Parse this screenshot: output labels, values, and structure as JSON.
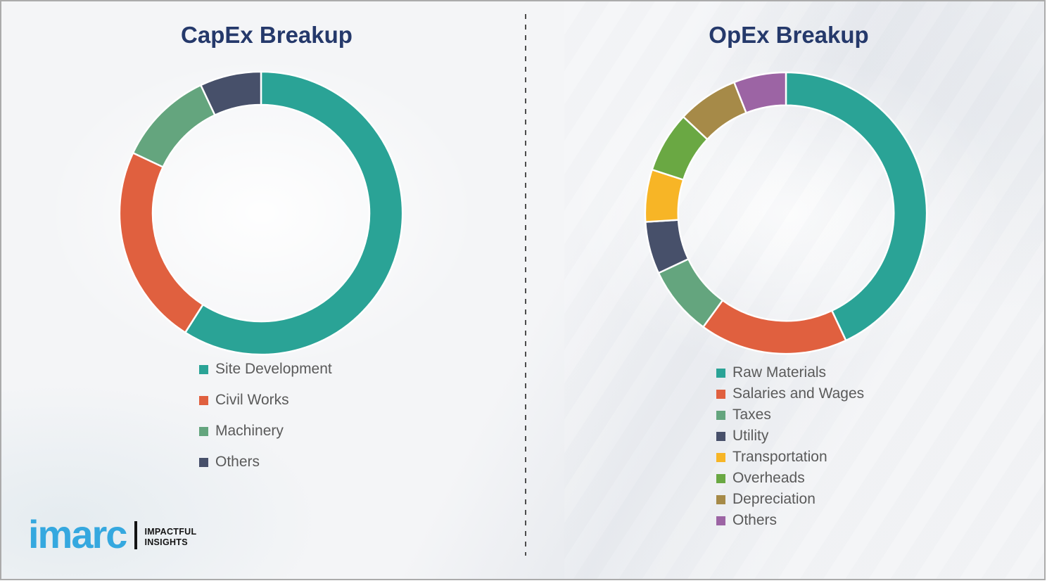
{
  "chart_data": [
    {
      "type": "pie",
      "variant": "donut",
      "title": "CapEx Breakup",
      "labels": [
        "Site Development",
        "Civil Works",
        "Machinery",
        "Others"
      ],
      "values": [
        59,
        23,
        11,
        7
      ],
      "values_are_percent_estimates": true,
      "colors": [
        "#2AA396",
        "#E0603F",
        "#64A57E",
        "#47506A"
      ],
      "start_angle_deg": 0,
      "direction": "clockwise",
      "data_labels": "none",
      "legend_position": "below-left"
    },
    {
      "type": "pie",
      "variant": "donut",
      "title": "OpEx Breakup",
      "labels": [
        "Raw Materials",
        "Salaries and Wages",
        "Taxes",
        "Utility",
        "Transportation",
        "Overheads",
        "Depreciation",
        "Others"
      ],
      "values": [
        43,
        17,
        8,
        6,
        6,
        7,
        7,
        6
      ],
      "values_are_percent_estimates": true,
      "colors": [
        "#2AA396",
        "#E0603F",
        "#64A57E",
        "#47506A",
        "#F7B526",
        "#6AA843",
        "#A68A48",
        "#9C64A4"
      ],
      "start_angle_deg": 0,
      "direction": "clockwise",
      "data_labels": "none",
      "legend_position": "below-left"
    }
  ],
  "logo": {
    "brand": "imarc",
    "brand_color": "#35A8DF",
    "tagline_line1": "IMPACTFUL",
    "tagline_line2": "INSIGHTS"
  }
}
